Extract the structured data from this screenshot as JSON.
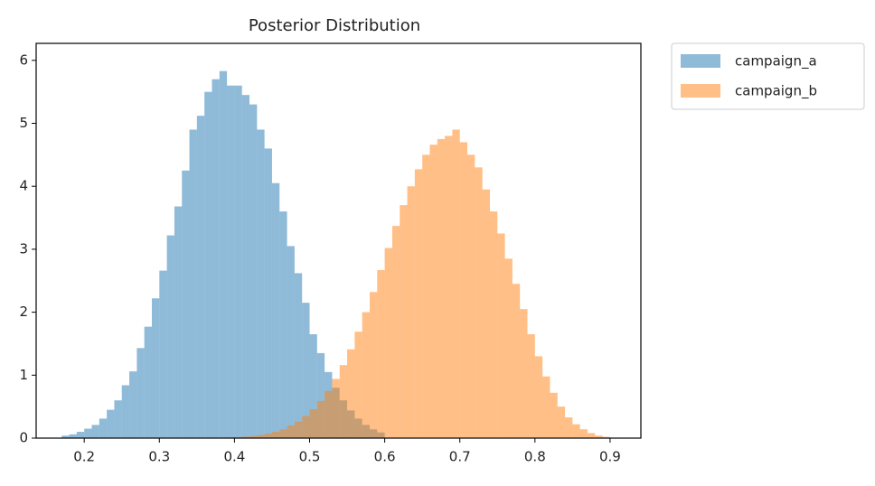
{
  "chart_data": {
    "type": "histogram",
    "title": "Posterior Distribution",
    "xlim": [
      0.136,
      0.941
    ],
    "ylim": [
      0,
      6.27
    ],
    "xticks": [
      0.2,
      0.3,
      0.4,
      0.5,
      0.6,
      0.7,
      0.8,
      0.9
    ],
    "yticks": [
      0,
      1,
      2,
      3,
      4,
      5,
      6
    ],
    "opacity": 0.5,
    "legend": "outside upper right",
    "series": [
      {
        "name": "campaign_a",
        "color": "#1f77b4",
        "bins": [
          0.17,
          0.18,
          0.19,
          0.2,
          0.21,
          0.22,
          0.23,
          0.24,
          0.25,
          0.26,
          0.27,
          0.28,
          0.29,
          0.3,
          0.31,
          0.32,
          0.33,
          0.34,
          0.35,
          0.36,
          0.37,
          0.38,
          0.39,
          0.4,
          0.41,
          0.42,
          0.43,
          0.44,
          0.45,
          0.46,
          0.47,
          0.48,
          0.49,
          0.5,
          0.51,
          0.52,
          0.53,
          0.54,
          0.55,
          0.56,
          0.57,
          0.58,
          0.59,
          0.6
        ],
        "values": [
          0.04,
          0.06,
          0.1,
          0.15,
          0.21,
          0.31,
          0.45,
          0.6,
          0.84,
          1.06,
          1.43,
          1.77,
          2.22,
          2.66,
          3.22,
          3.68,
          4.25,
          4.9,
          5.12,
          5.5,
          5.7,
          5.83,
          5.6,
          5.6,
          5.45,
          5.3,
          4.9,
          4.6,
          4.05,
          3.6,
          3.05,
          2.62,
          2.15,
          1.65,
          1.35,
          1.05,
          0.8,
          0.6,
          0.44,
          0.31,
          0.21,
          0.14,
          0.09
        ]
      },
      {
        "name": "campaign_b",
        "color": "#ff7f0e",
        "bins": [
          0.37,
          0.38,
          0.39,
          0.4,
          0.41,
          0.42,
          0.43,
          0.44,
          0.45,
          0.46,
          0.47,
          0.48,
          0.49,
          0.5,
          0.51,
          0.52,
          0.53,
          0.54,
          0.55,
          0.56,
          0.57,
          0.58,
          0.59,
          0.6,
          0.61,
          0.62,
          0.63,
          0.64,
          0.65,
          0.66,
          0.67,
          0.68,
          0.69,
          0.7,
          0.71,
          0.72,
          0.73,
          0.74,
          0.75,
          0.76,
          0.77,
          0.78,
          0.79,
          0.8,
          0.81,
          0.82,
          0.83,
          0.84,
          0.85,
          0.86,
          0.87,
          0.88,
          0.89,
          0.9
        ],
        "values": [
          0.004,
          0.007,
          0.01,
          0.016,
          0.024,
          0.035,
          0.05,
          0.07,
          0.1,
          0.14,
          0.2,
          0.26,
          0.35,
          0.46,
          0.59,
          0.75,
          0.94,
          1.16,
          1.41,
          1.69,
          2.0,
          2.32,
          2.67,
          3.02,
          3.37,
          3.7,
          4.0,
          4.27,
          4.5,
          4.66,
          4.75,
          4.8,
          4.9,
          4.7,
          4.5,
          4.3,
          3.95,
          3.6,
          3.25,
          2.85,
          2.45,
          2.05,
          1.65,
          1.3,
          0.98,
          0.72,
          0.5,
          0.33,
          0.22,
          0.14,
          0.08,
          0.04,
          0.02
        ]
      }
    ]
  }
}
